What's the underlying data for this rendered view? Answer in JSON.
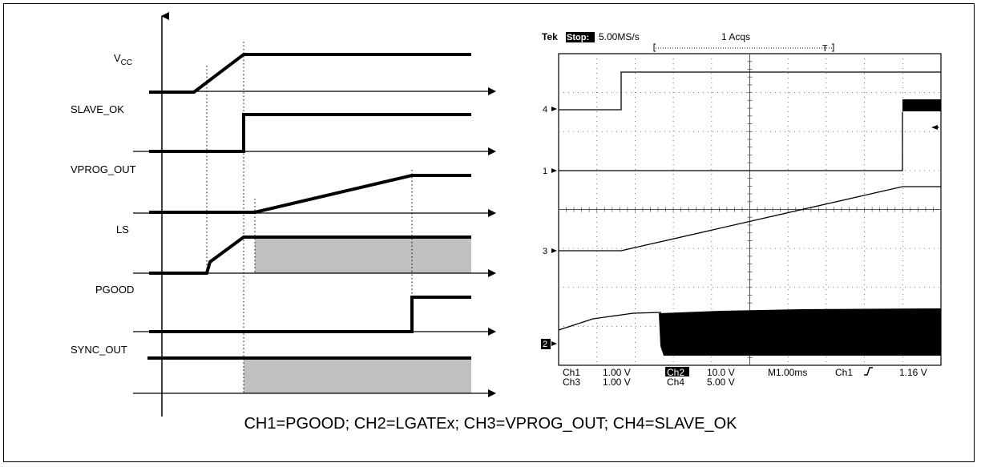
{
  "timing": {
    "signals": [
      {
        "name": "V",
        "sub": "CC"
      },
      {
        "name": "SLAVE_OK"
      },
      {
        "name": "VPROG_OUT"
      },
      {
        "name": "LS"
      },
      {
        "name": "PGOOD"
      },
      {
        "name": "SYNC_OUT"
      }
    ]
  },
  "scope": {
    "header": {
      "brand": "Tek",
      "state": "Stop:",
      "rate": "5.00MS/s",
      "acqs": "1 Acqs",
      "trigger_mark": "T"
    },
    "channel_markers": [
      "4",
      "1",
      "3",
      "2"
    ],
    "readout": {
      "row1": [
        "Ch1",
        "1.00 V",
        "Ch2",
        "10.0 V",
        "M1.00ms",
        "Ch1",
        "1.16 V"
      ],
      "row2": [
        "Ch3",
        "1.00 V",
        "Ch4",
        "5.00 V"
      ]
    },
    "colors": {
      "trace": "#000000",
      "grid": "#555555",
      "shade": "#c0c0c0"
    }
  },
  "caption": "CH1=PGOOD; CH2=LGATEx; CH3=VPROG_OUT; CH4=SLAVE_OK"
}
